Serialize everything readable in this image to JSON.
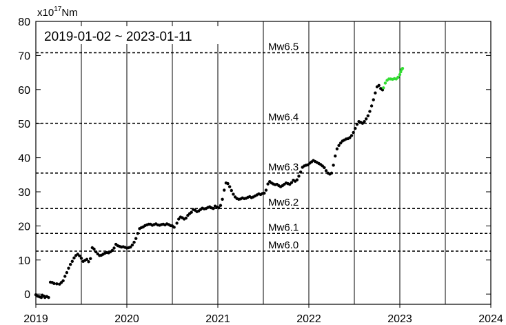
{
  "chart_data": {
    "type": "scatter",
    "period_label": "2019-01-02 ~ 2023-01-11",
    "unit": {
      "prefix": "x10",
      "exponent": "17",
      "suffix": "Nm"
    },
    "xlim": [
      2019,
      2024
    ],
    "ylim": [
      -3,
      80
    ],
    "x_ticks": [
      2019,
      2020,
      2021,
      2022,
      2023,
      2024
    ],
    "x_tick_labels": [
      "2019",
      "2020",
      "2021",
      "2022",
      "2023",
      "2024"
    ],
    "y_ticks": [
      0,
      10,
      20,
      30,
      40,
      50,
      60,
      70,
      80
    ],
    "y_tick_labels": [
      "0",
      "10",
      "20",
      "30",
      "40",
      "50",
      "60",
      "70",
      "80"
    ],
    "grid": {
      "vertical_lines_at": [
        2019.5,
        2020,
        2020.5,
        2021,
        2021.5,
        2022,
        2022.5,
        2023,
        2023.5
      ]
    },
    "reference_lines": [
      {
        "label": "Mw6.5",
        "value": 70.8
      },
      {
        "label": "Mw6.4",
        "value": 50.1
      },
      {
        "label": "Mw6.3",
        "value": 35.5
      },
      {
        "label": "Mw6.2",
        "value": 25.1
      },
      {
        "label": "Mw6.1",
        "value": 17.8
      },
      {
        "label": "Mw6.0",
        "value": 12.6
      }
    ],
    "series": [
      {
        "color": "#000000",
        "points": [
          [
            2019.0,
            -0.2
          ],
          [
            2019.02,
            -0.6
          ],
          [
            2019.04,
            -0.8
          ],
          [
            2019.06,
            -1.0
          ],
          [
            2019.07,
            -0.3
          ],
          [
            2019.09,
            -0.6
          ],
          [
            2019.1,
            -1.0
          ],
          [
            2019.12,
            -0.7
          ],
          [
            2019.14,
            -1.0
          ],
          [
            2019.16,
            3.5
          ],
          [
            2019.18,
            3.4
          ],
          [
            2019.2,
            3.1
          ],
          [
            2019.23,
            3.0
          ],
          [
            2019.26,
            2.9
          ],
          [
            2019.28,
            3.4
          ],
          [
            2019.3,
            3.9
          ],
          [
            2019.32,
            5.2
          ],
          [
            2019.34,
            6.3
          ],
          [
            2019.36,
            7.6
          ],
          [
            2019.38,
            8.7
          ],
          [
            2019.4,
            9.6
          ],
          [
            2019.42,
            10.6
          ],
          [
            2019.44,
            11.3
          ],
          [
            2019.46,
            11.7
          ],
          [
            2019.48,
            11.2
          ],
          [
            2019.5,
            10.5
          ],
          [
            2019.52,
            9.6
          ],
          [
            2019.54,
            9.9
          ],
          [
            2019.56,
            10.2
          ],
          [
            2019.58,
            9.5
          ],
          [
            2019.6,
            10.4
          ],
          [
            2019.62,
            13.6
          ],
          [
            2019.64,
            13.2
          ],
          [
            2019.66,
            12.4
          ],
          [
            2019.68,
            11.8
          ],
          [
            2019.7,
            11.3
          ],
          [
            2019.72,
            11.4
          ],
          [
            2019.74,
            11.7
          ],
          [
            2019.76,
            12.0
          ],
          [
            2019.78,
            12.2
          ],
          [
            2019.8,
            12.1
          ],
          [
            2019.82,
            12.4
          ],
          [
            2019.84,
            12.8
          ],
          [
            2019.86,
            13.5
          ],
          [
            2019.88,
            14.6
          ],
          [
            2019.9,
            14.2
          ],
          [
            2019.92,
            14.0
          ],
          [
            2019.94,
            13.8
          ],
          [
            2019.96,
            13.9
          ],
          [
            2019.98,
            13.7
          ],
          [
            2020.0,
            13.5
          ],
          [
            2020.02,
            13.6
          ],
          [
            2020.04,
            13.8
          ],
          [
            2020.06,
            14.4
          ],
          [
            2020.08,
            15.2
          ],
          [
            2020.1,
            16.3
          ],
          [
            2020.12,
            17.8
          ],
          [
            2020.14,
            19.2
          ],
          [
            2020.16,
            19.5
          ],
          [
            2020.18,
            19.7
          ],
          [
            2020.2,
            20.1
          ],
          [
            2020.22,
            20.3
          ],
          [
            2020.24,
            20.5
          ],
          [
            2020.26,
            20.5
          ],
          [
            2020.28,
            20.2
          ],
          [
            2020.3,
            20.4
          ],
          [
            2020.32,
            20.6
          ],
          [
            2020.34,
            20.3
          ],
          [
            2020.36,
            20.2
          ],
          [
            2020.38,
            20.4
          ],
          [
            2020.4,
            20.5
          ],
          [
            2020.42,
            20.3
          ],
          [
            2020.44,
            20.6
          ],
          [
            2020.46,
            20.4
          ],
          [
            2020.48,
            20.1
          ],
          [
            2020.5,
            20.0
          ],
          [
            2020.52,
            19.6
          ],
          [
            2020.55,
            20.8
          ],
          [
            2020.57,
            22.0
          ],
          [
            2020.59,
            22.6
          ],
          [
            2020.61,
            22.4
          ],
          [
            2020.63,
            22.0
          ],
          [
            2020.65,
            22.3
          ],
          [
            2020.67,
            23.1
          ],
          [
            2020.69,
            23.6
          ],
          [
            2020.71,
            24.0
          ],
          [
            2020.73,
            24.8
          ],
          [
            2020.75,
            24.6
          ],
          [
            2020.77,
            24.2
          ],
          [
            2020.79,
            24.4
          ],
          [
            2020.81,
            24.8
          ],
          [
            2020.83,
            25.2
          ],
          [
            2020.85,
            25.0
          ],
          [
            2020.87,
            25.1
          ],
          [
            2020.89,
            25.4
          ],
          [
            2020.91,
            25.6
          ],
          [
            2020.93,
            25.3
          ],
          [
            2020.95,
            25.1
          ],
          [
            2020.97,
            25.8
          ],
          [
            2020.99,
            25.5
          ],
          [
            2021.01,
            25.3
          ],
          [
            2021.03,
            26.0
          ],
          [
            2021.05,
            27.8
          ],
          [
            2021.07,
            30.5
          ],
          [
            2021.09,
            32.6
          ],
          [
            2021.11,
            32.4
          ],
          [
            2021.13,
            31.5
          ],
          [
            2021.15,
            30.4
          ],
          [
            2021.17,
            29.3
          ],
          [
            2021.19,
            28.5
          ],
          [
            2021.21,
            28.0
          ],
          [
            2021.23,
            27.8
          ],
          [
            2021.25,
            27.9
          ],
          [
            2021.27,
            28.2
          ],
          [
            2021.29,
            28.0
          ],
          [
            2021.31,
            28.1
          ],
          [
            2021.33,
            28.4
          ],
          [
            2021.35,
            28.6
          ],
          [
            2021.37,
            28.3
          ],
          [
            2021.39,
            28.5
          ],
          [
            2021.41,
            28.8
          ],
          [
            2021.43,
            29.1
          ],
          [
            2021.45,
            29.4
          ],
          [
            2021.47,
            29.2
          ],
          [
            2021.49,
            29.5
          ],
          [
            2021.51,
            29.6
          ],
          [
            2021.53,
            30.5
          ],
          [
            2021.55,
            32.3
          ],
          [
            2021.57,
            33.0
          ],
          [
            2021.59,
            32.6
          ],
          [
            2021.61,
            32.3
          ],
          [
            2021.63,
            32.1
          ],
          [
            2021.65,
            32.2
          ],
          [
            2021.67,
            31.8
          ],
          [
            2021.69,
            31.5
          ],
          [
            2021.71,
            31.8
          ],
          [
            2021.73,
            32.2
          ],
          [
            2021.75,
            32.6
          ],
          [
            2021.77,
            32.4
          ],
          [
            2021.79,
            32.2
          ],
          [
            2021.81,
            32.7
          ],
          [
            2021.83,
            33.4
          ],
          [
            2021.85,
            33.1
          ],
          [
            2021.87,
            33.5
          ],
          [
            2021.89,
            34.6
          ],
          [
            2021.91,
            35.8
          ],
          [
            2021.93,
            37.2
          ],
          [
            2021.95,
            37.6
          ],
          [
            2021.97,
            37.8
          ],
          [
            2021.99,
            37.9
          ],
          [
            2022.01,
            38.4
          ],
          [
            2022.03,
            38.8
          ],
          [
            2022.05,
            39.2
          ],
          [
            2022.07,
            38.9
          ],
          [
            2022.09,
            38.6
          ],
          [
            2022.11,
            38.3
          ],
          [
            2022.13,
            38.0
          ],
          [
            2022.15,
            37.6
          ],
          [
            2022.17,
            37.1
          ],
          [
            2022.19,
            36.2
          ],
          [
            2022.21,
            35.5
          ],
          [
            2022.23,
            35.2
          ],
          [
            2022.25,
            35.5
          ],
          [
            2022.27,
            37.8
          ],
          [
            2022.29,
            40.5
          ],
          [
            2022.31,
            42.6
          ],
          [
            2022.33,
            43.6
          ],
          [
            2022.35,
            44.3
          ],
          [
            2022.37,
            44.9
          ],
          [
            2022.39,
            45.2
          ],
          [
            2022.41,
            45.5
          ],
          [
            2022.43,
            45.6
          ],
          [
            2022.45,
            45.9
          ],
          [
            2022.47,
            46.5
          ],
          [
            2022.49,
            47.4
          ],
          [
            2022.51,
            48.6
          ],
          [
            2022.53,
            49.8
          ],
          [
            2022.55,
            50.6
          ],
          [
            2022.57,
            50.4
          ],
          [
            2022.59,
            50.1
          ],
          [
            2022.61,
            50.6
          ],
          [
            2022.63,
            51.4
          ],
          [
            2022.65,
            52.3
          ],
          [
            2022.67,
            53.6
          ],
          [
            2022.69,
            55.2
          ],
          [
            2022.71,
            57.0
          ],
          [
            2022.73,
            59.0
          ],
          [
            2022.75,
            60.8
          ],
          [
            2022.77,
            61.2
          ],
          [
            2022.79,
            60.3
          ],
          [
            2022.81,
            59.9
          ]
        ]
      },
      {
        "color": "#33dd33",
        "points": [
          [
            2022.82,
            60.5
          ],
          [
            2022.84,
            61.9
          ],
          [
            2022.86,
            62.7
          ],
          [
            2022.88,
            63.1
          ],
          [
            2022.9,
            63.1
          ],
          [
            2022.92,
            63.0
          ],
          [
            2022.94,
            63.2
          ],
          [
            2022.96,
            63.1
          ],
          [
            2022.98,
            63.6
          ],
          [
            2023.0,
            64.4
          ],
          [
            2023.01,
            65.2
          ],
          [
            2023.02,
            65.9
          ],
          [
            2023.03,
            66.2
          ]
        ]
      }
    ]
  }
}
